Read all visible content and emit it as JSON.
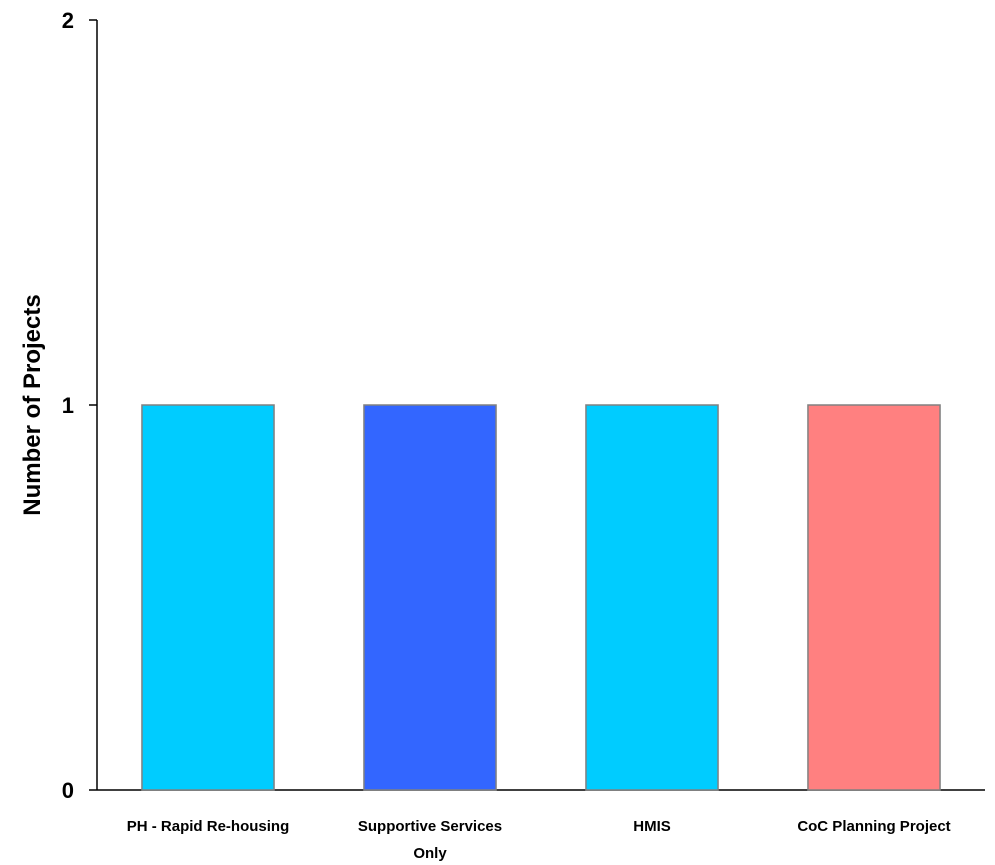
{
  "chart_data": {
    "type": "bar",
    "title": "",
    "xlabel": "",
    "ylabel": "Number of Projects",
    "categories": [
      [
        "PH - Rapid Re-housing"
      ],
      [
        "Supportive Services",
        "Only"
      ],
      [
        "HMIS"
      ],
      [
        "CoC Planning Project"
      ]
    ],
    "values": [
      1,
      1,
      1,
      1
    ],
    "bar_colors": [
      "#00CCFF",
      "#3366FF",
      "#00CCFF",
      "#FF8080"
    ],
    "bar_edge_color": "#808080",
    "ylim": [
      0,
      2
    ],
    "yticks": [
      "0",
      "1",
      "2"
    ],
    "grid": false,
    "legend": false
  }
}
